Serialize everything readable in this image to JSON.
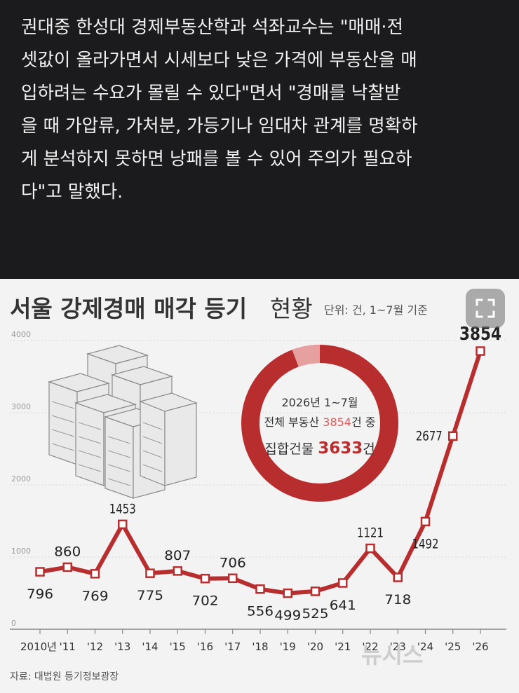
{
  "article": {
    "lines": [
      "권대중 한성대 경제부동산학과 석좌교수는 \"매매·전",
      "셋값이 올라가면서 시세보다 낮은 가격에 부동산을 매",
      "입하려는 수요가 몰릴 수 있다\"면서 \"경매를 낙찰받",
      "을 때 가압류, 가처분, 가등기나 임대차 관계를 명확하",
      "게 분석하지 못하면 낭패를 볼 수 있어 주의가 필요하",
      "다\"고 말했다."
    ]
  },
  "figure": {
    "expand_icon": "expand-icon",
    "illustration_icon": "apartment-buildings-icon",
    "watermark": "뉴시스"
  },
  "chart_data": {
    "type": "line",
    "title": "서울 강제경매 매각 등기",
    "title_suffix": "현황",
    "unit_note": "단위: 건, 1~7월 기준",
    "categories": [
      "2010년",
      "'11",
      "'12",
      "'13",
      "'14",
      "'15",
      "'16",
      "'17",
      "'18",
      "'19",
      "'20",
      "'21",
      "'22",
      "'23",
      "'24",
      "'25",
      "'26"
    ],
    "values": [
      796,
      860,
      769,
      1453,
      775,
      807,
      702,
      706,
      556,
      499,
      525,
      641,
      1121,
      718,
      1492,
      2677,
      3854
    ],
    "y_ticks": [
      "0",
      "1000",
      "2000",
      "3000",
      "4000"
    ],
    "ylim": [
      0,
      4000
    ],
    "grid": true,
    "source": "자료: 대법원 등기정보광장",
    "colors": {
      "line": "#b82e2e",
      "marker_fill": "#ffffff",
      "donut_main": "#b82e2e",
      "donut_rest": "#e6a0a0",
      "highlight": "#e45a5a"
    },
    "donut": {
      "total": 3854,
      "part": 3633,
      "line1": "2026년 1~7월",
      "line2_prefix": "전체 부동산 ",
      "line2_value": "3854",
      "line2_suffix": "건 중",
      "line3_prefix": "집합건물 ",
      "line3_value": "3633",
      "line3_suffix": "건"
    }
  }
}
